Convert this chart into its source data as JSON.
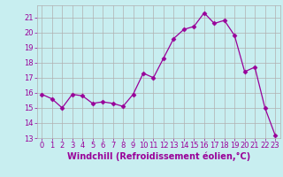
{
  "x": [
    0,
    1,
    2,
    3,
    4,
    5,
    6,
    7,
    8,
    9,
    10,
    11,
    12,
    13,
    14,
    15,
    16,
    17,
    18,
    19,
    20,
    21,
    22,
    23
  ],
  "y": [
    15.9,
    15.6,
    15.0,
    15.9,
    15.8,
    15.3,
    15.4,
    15.3,
    15.1,
    15.9,
    17.3,
    17.0,
    18.3,
    19.6,
    20.2,
    20.4,
    21.3,
    20.6,
    20.8,
    19.8,
    17.4,
    17.7,
    15.0,
    13.2
  ],
  "line_color": "#990099",
  "marker": "D",
  "marker_size": 2.5,
  "bg_color": "#c8eef0",
  "grid_color": "#b0b0b0",
  "xlabel": "Windchill (Refroidissement éolien,°C)",
  "ylim": [
    13,
    21.8
  ],
  "xlim": [
    -0.5,
    23.5
  ],
  "yticks": [
    13,
    14,
    15,
    16,
    17,
    18,
    19,
    20,
    21
  ],
  "xticks": [
    0,
    1,
    2,
    3,
    4,
    5,
    6,
    7,
    8,
    9,
    10,
    11,
    12,
    13,
    14,
    15,
    16,
    17,
    18,
    19,
    20,
    21,
    22,
    23
  ],
  "tick_color": "#990099",
  "label_color": "#990099",
  "tick_fontsize": 6,
  "xlabel_fontsize": 7
}
